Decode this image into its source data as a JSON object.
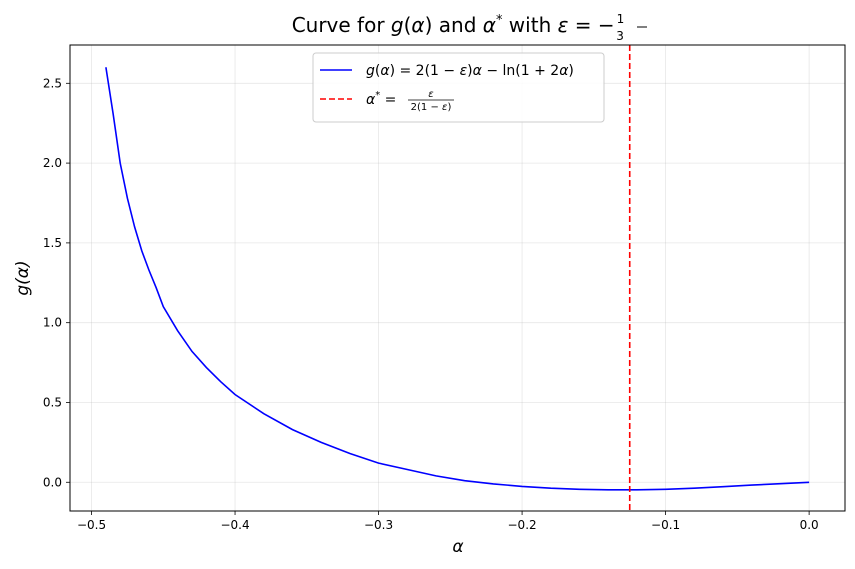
{
  "chart_data": {
    "type": "line",
    "title": "Curve for g(α) and α* with ε = −1/3",
    "xlabel": "α",
    "ylabel": "g(α)",
    "xlim": [
      -0.515,
      0.025
    ],
    "ylim": [
      -0.18,
      2.74
    ],
    "grid": true,
    "legend_position": "upper center",
    "x_ticks": [
      -0.5,
      -0.4,
      -0.3,
      -0.2,
      -0.1,
      0.0
    ],
    "x_tick_labels": [
      "−0.5",
      "−0.4",
      "−0.3",
      "−0.2",
      "−0.1",
      "0.0"
    ],
    "y_ticks": [
      0.0,
      0.5,
      1.0,
      1.5,
      2.0,
      2.5
    ],
    "y_tick_labels": [
      "0.0",
      "0.5",
      "1.0",
      "1.5",
      "2.0",
      "2.5"
    ],
    "series": [
      {
        "name": "g(α) = 2(1 − ε)α − ln(1 + 2α)",
        "color": "#0000ff",
        "style": "solid",
        "x": [
          -0.49,
          -0.485,
          -0.48,
          -0.475,
          -0.47,
          -0.465,
          -0.46,
          -0.455,
          -0.45,
          -0.44,
          -0.43,
          -0.42,
          -0.41,
          -0.4,
          -0.38,
          -0.36,
          -0.34,
          -0.32,
          -0.3,
          -0.28,
          -0.26,
          -0.24,
          -0.22,
          -0.2,
          -0.18,
          -0.16,
          -0.14,
          -0.125,
          -0.12,
          -0.1,
          -0.08,
          -0.06,
          -0.04,
          -0.02,
          0.0
        ],
        "y": [
          2.6,
          2.31,
          2.0,
          1.78,
          1.6,
          1.45,
          1.33,
          1.22,
          1.1,
          0.95,
          0.82,
          0.72,
          0.63,
          0.55,
          0.43,
          0.33,
          0.25,
          0.18,
          0.12,
          0.08,
          0.04,
          0.01,
          -0.01,
          -0.026,
          -0.037,
          -0.044,
          -0.047,
          -0.047,
          -0.047,
          -0.044,
          -0.037,
          -0.028,
          -0.018,
          -0.009,
          0.0
        ]
      },
      {
        "name": "α* = ε / (2(1 − ε))",
        "color": "#ff0000",
        "style": "dashed",
        "vline_x": -0.125
      }
    ]
  }
}
